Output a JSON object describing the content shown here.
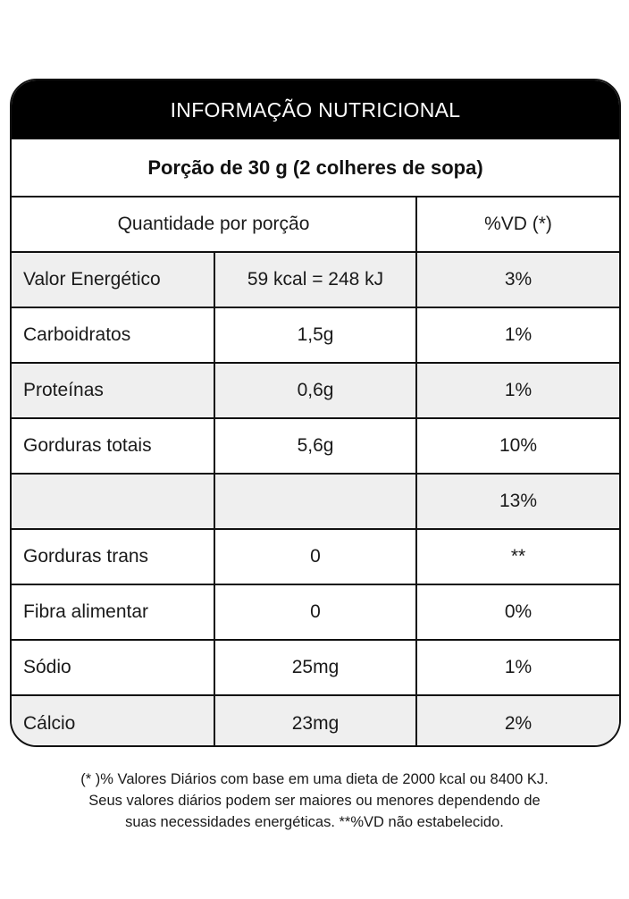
{
  "header": {
    "title": "INFORMAÇÃO NUTRICIONAL"
  },
  "portion": {
    "text": "Porção de 30 g (2 colheres de sopa)"
  },
  "columns": {
    "quantity": "Quantidade por porção",
    "vd": "%VD (*)"
  },
  "rows": [
    {
      "name": "Valor Energético",
      "qty": "59 kcal = 248 kJ",
      "vd": "3%"
    },
    {
      "name": "Carboidratos",
      "qty": "1,5g",
      "vd": "1%"
    },
    {
      "name": "Proteínas",
      "qty": "0,6g",
      "vd": "1%"
    },
    {
      "name": "Gorduras totais",
      "qty": "5,6g",
      "vd": "10%"
    },
    {
      "name": "",
      "qty": "",
      "vd": "13%"
    },
    {
      "name": "Gorduras trans",
      "qty": "0",
      "vd": "**"
    },
    {
      "name": "Fibra alimentar",
      "qty": "0",
      "vd": "0%"
    },
    {
      "name": "Sódio",
      "qty": "25mg",
      "vd": "1%"
    },
    {
      "name": "Cálcio",
      "qty": "23mg",
      "vd": "2%"
    }
  ],
  "footnote": {
    "line1": "(* )% Valores Diários com base em uma dieta de 2000 kcal ou 8400 KJ.",
    "line2": "Seus valores diários podem ser maiores ou menores dependendo de",
    "line3": "suas necessidades energéticas. **%VD não estabelecido."
  }
}
